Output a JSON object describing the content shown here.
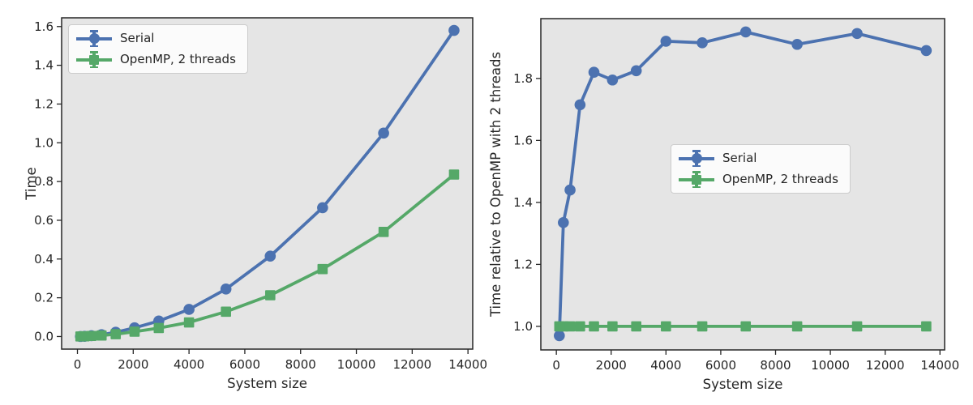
{
  "figure": {
    "background": "#ffffff",
    "plot_background": "#e5e5e5",
    "text_color": "#262626",
    "spine_color": "#262626",
    "palette": {
      "serial_blue": "#4c72b0",
      "openmp_green": "#55a868"
    }
  },
  "chart_data": [
    {
      "type": "line",
      "title": "",
      "xlabel": "System size",
      "ylabel": "Time",
      "xlim": [
        -567,
        14170
      ],
      "ylim": [
        -0.065,
        1.645
      ],
      "grid": false,
      "legend_position": "upper-left",
      "xticks": [
        0,
        2000,
        4000,
        6000,
        8000,
        10000,
        12000,
        14000
      ],
      "xtick_labels": [
        "0",
        "2000",
        "4000",
        "6000",
        "8000",
        "10000",
        "12000",
        "14000"
      ],
      "yticks": [
        0.0,
        0.2,
        0.4,
        0.6,
        0.8,
        1.0,
        1.2,
        1.4,
        1.6
      ],
      "ytick_labels": [
        "0.0",
        "0.2",
        "0.4",
        "0.6",
        "0.8",
        "1.0",
        "1.2",
        "1.4",
        "1.6"
      ],
      "x": [
        108,
        256,
        500,
        864,
        1372,
        2048,
        2916,
        4000,
        5324,
        6912,
        8788,
        10976,
        13500
      ],
      "series": [
        {
          "name": "Serial",
          "color": "#4c72b0",
          "marker": "circle",
          "values": [
            0.0003,
            0.0013,
            0.0042,
            0.0095,
            0.022,
            0.045,
            0.08,
            0.14,
            0.245,
            0.415,
            0.665,
            1.05,
            1.58
          ]
        },
        {
          "name": "OpenMP, 2 threads",
          "color": "#55a868",
          "marker": "square",
          "values": [
            0.0003,
            0.001,
            0.0029,
            0.0055,
            0.0121,
            0.025,
            0.0438,
            0.0729,
            0.128,
            0.213,
            0.348,
            0.54,
            0.836
          ]
        }
      ]
    },
    {
      "type": "line",
      "title": "",
      "xlabel": "System size",
      "ylabel": "Time relative to OpenMP with 2 threads",
      "xlim": [
        -567,
        14170
      ],
      "ylim": [
        0.924,
        1.993
      ],
      "grid": false,
      "legend_position": "center",
      "xticks": [
        0,
        2000,
        4000,
        6000,
        8000,
        10000,
        12000,
        14000
      ],
      "xtick_labels": [
        "0",
        "2000",
        "4000",
        "6000",
        "8000",
        "10000",
        "12000",
        "14000"
      ],
      "yticks": [
        1.0,
        1.2,
        1.4,
        1.6,
        1.8
      ],
      "ytick_labels": [
        "1.0",
        "1.2",
        "1.4",
        "1.6",
        "1.8"
      ],
      "x": [
        108,
        256,
        500,
        864,
        1372,
        2048,
        2916,
        4000,
        5324,
        6912,
        8788,
        10976,
        13500
      ],
      "series": [
        {
          "name": "Serial",
          "color": "#4c72b0",
          "marker": "circle",
          "values": [
            0.97,
            1.335,
            1.44,
            1.715,
            1.82,
            1.795,
            1.825,
            1.92,
            1.915,
            1.95,
            1.91,
            1.945,
            1.89
          ]
        },
        {
          "name": "OpenMP, 2 threads",
          "color": "#55a868",
          "marker": "square",
          "values": [
            1.0,
            1.0,
            1.0,
            1.0,
            1.0,
            1.0,
            1.0,
            1.0,
            1.0,
            1.0,
            1.0,
            1.0,
            1.0
          ]
        }
      ]
    }
  ]
}
